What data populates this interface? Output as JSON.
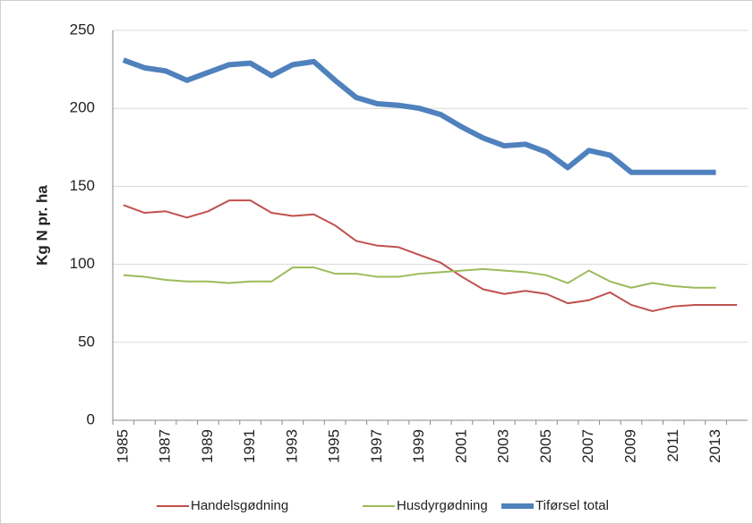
{
  "chart_data": {
    "type": "line",
    "y_label": "Kg N pr. ha",
    "categories": [
      "1985",
      null,
      "1987",
      null,
      "1989",
      null,
      "1991",
      null,
      "1993",
      null,
      "1995",
      null,
      "1997",
      null,
      "1999",
      null,
      "2001",
      null,
      "2003",
      null,
      "2005",
      null,
      "2007",
      null,
      "2009",
      null,
      "2011",
      null,
      "2013",
      null
    ],
    "series": [
      {
        "name": "Handelsgødning",
        "color": "#c0504d",
        "width": 2,
        "values": [
          138,
          133,
          134,
          130,
          134,
          141,
          141,
          133,
          131,
          132,
          125,
          115,
          112,
          111,
          106,
          101,
          92,
          84,
          81,
          83,
          81,
          75,
          77,
          82,
          74,
          70,
          73,
          74,
          74,
          74
        ]
      },
      {
        "name": "Husdyrgødning",
        "color": "#9bbb59",
        "width": 2,
        "values": [
          93,
          92,
          90,
          89,
          89,
          88,
          89,
          89,
          98,
          98,
          94,
          94,
          92,
          92,
          94,
          95,
          96,
          97,
          96,
          95,
          93,
          88,
          96,
          89,
          85,
          88,
          86,
          85,
          85,
          null
        ]
      },
      {
        "name": "Tiførsel total",
        "color": "#4f81bd",
        "width": 6,
        "values": [
          231,
          226,
          224,
          218,
          223,
          228,
          229,
          221,
          228,
          230,
          218,
          207,
          203,
          202,
          200,
          196,
          188,
          181,
          176,
          177,
          172,
          162,
          173,
          170,
          159,
          159,
          159,
          159,
          159,
          null
        ]
      }
    ],
    "ylim": [
      0,
      250
    ],
    "yticks": [
      0,
      50,
      100,
      150,
      200,
      250
    ],
    "grid": true,
    "legend": "bottom"
  }
}
